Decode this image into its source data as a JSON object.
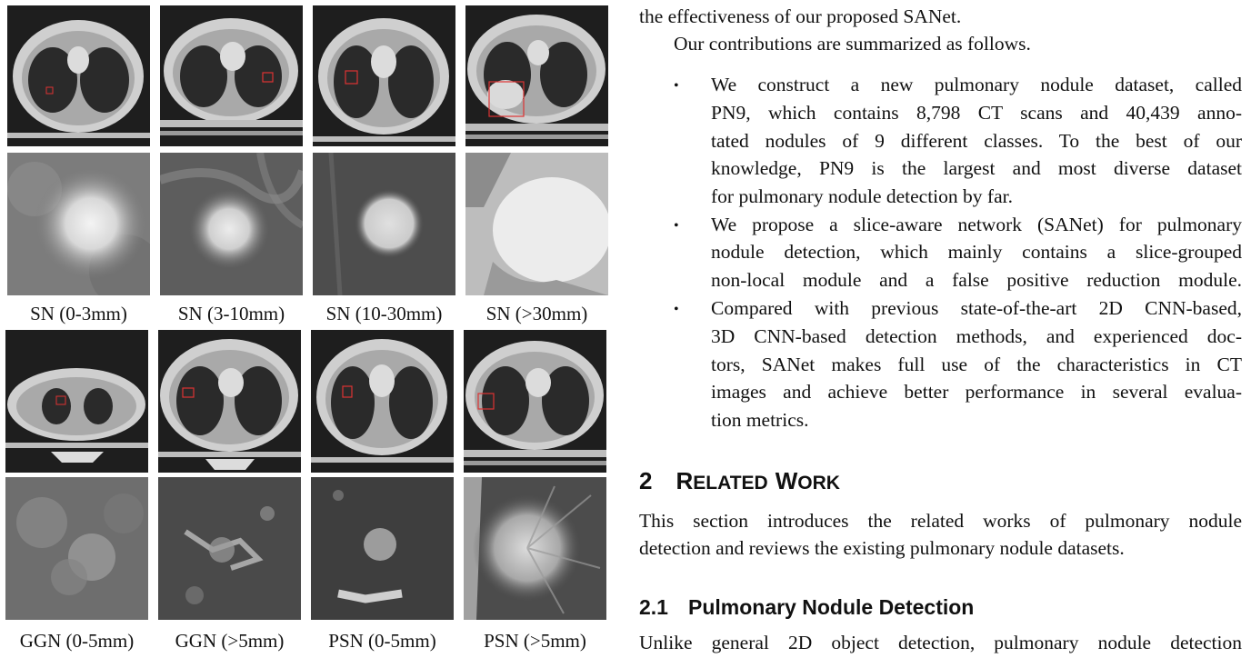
{
  "figure": {
    "row1_captions": [
      "SN (0-3mm)",
      "SN (3-10mm)",
      "SN (10-30mm)",
      "SN (>30mm)"
    ],
    "row2_captions": [
      "GGN (0-5mm)",
      "GGN (>5mm)",
      "PSN (0-5mm)",
      "PSN (>5mm)"
    ]
  },
  "text": {
    "intro_line": "the effectiveness of our proposed SANet.",
    "contrib_line": "Our contributions are summarized as follows.",
    "bullets": [
      [
        "We construct a new pulmonary nodule dataset, called",
        "PN9, which contains 8,798 CT scans and 40,439 anno-",
        "tated nodules of 9 different classes. To the best of our",
        "knowledge, PN9 is the largest and most diverse dataset",
        "for pulmonary nodule detection by far."
      ],
      [
        "We propose a slice-aware network (SANet) for pulmonary",
        "nodule detection, which mainly contains a slice-grouped",
        "non-local module and a false positive reduction module."
      ],
      [
        "Compared with previous state-of-the-art 2D CNN-based,",
        "3D CNN-based detection methods, and experienced doc-",
        "tors, SANet makes full use of the characteristics in CT",
        "images and achieve better performance in several evalua-",
        "tion metrics."
      ]
    ],
    "bullet_symbol": "•",
    "section_number": "2",
    "section_title_initial1": "R",
    "section_title_rest1": "ELATED",
    "section_title_initial2": "W",
    "section_title_rest2": "ORK",
    "section_para": [
      "This section introduces the related works of pulmonary nodule",
      "detection and reviews the existing pulmonary nodule datasets."
    ],
    "subsection_number": "2.1",
    "subsection_title": "Pulmonary Nodule Detection",
    "last_line": "Unlike general 2D object detection, pulmonary nodule detection"
  }
}
